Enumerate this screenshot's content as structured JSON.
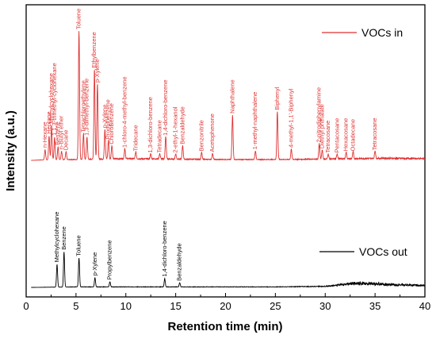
{
  "chart_data": {
    "type": "line",
    "xlabel": "Retention time (min)",
    "ylabel": "Intensity (a.u.)",
    "xlim": [
      0,
      40
    ],
    "xticks": [
      0,
      5,
      10,
      15,
      20,
      25,
      30,
      35,
      40
    ],
    "grid": false,
    "legend_placement": "right",
    "series": [
      {
        "name": "VOCs in",
        "color": "#e03030",
        "baseline": 0,
        "noise": [
          [
            0.5,
            0
          ],
          [
            1.5,
            0.5
          ],
          [
            5,
            1
          ],
          [
            10,
            2
          ],
          [
            15,
            1.5
          ],
          [
            20,
            1
          ],
          [
            25,
            1
          ],
          [
            30,
            1.5
          ],
          [
            33,
            2
          ],
          [
            36,
            2.5
          ],
          [
            40,
            2
          ]
        ],
        "peaks": [
          {
            "x": 1.9,
            "h": 12,
            "label": "n-Hexane"
          },
          {
            "x": 2.3,
            "h": 28,
            "label": "Heptane"
          },
          {
            "x": 2.55,
            "h": 40,
            "label": "Methylcyclohexane"
          },
          {
            "x": 2.85,
            "h": 26,
            "label": "1,1,3-trimethyl-cyclohexane"
          },
          {
            "x": 3.2,
            "h": 15,
            "label": "Benzene"
          },
          {
            "x": 3.55,
            "h": 10,
            "label": "n-Butyl ether"
          },
          {
            "x": 4.0,
            "h": 9,
            "label": "Decane"
          },
          {
            "x": 5.3,
            "h": 150,
            "label": "Toluene"
          },
          {
            "x": 5.75,
            "h": 30,
            "label": "Tetrachloroethylene"
          },
          {
            "x": 6.1,
            "h": 26,
            "label": "1,3-dimethyl-benzene"
          },
          {
            "x": 6.85,
            "h": 105,
            "label": "Ethylbenzene"
          },
          {
            "x": 7.15,
            "h": 88,
            "label": "p-Xylene"
          },
          {
            "x": 7.9,
            "h": 35,
            "label": "p-Xylene"
          },
          {
            "x": 8.25,
            "h": 22,
            "label": "Propylbenzene"
          },
          {
            "x": 8.6,
            "h": 16,
            "label": "ChloroBenzene"
          },
          {
            "x": 9.9,
            "h": 12,
            "label": "1-chloro-4-methyl-benzene"
          },
          {
            "x": 11.0,
            "h": 8,
            "label": "Tridecane"
          },
          {
            "x": 12.5,
            "h": 6,
            "label": "1,3-dichloro-benzene"
          },
          {
            "x": 13.4,
            "h": 6,
            "label": "Tetradecane"
          },
          {
            "x": 14.0,
            "h": 26,
            "label": "1,4-dichloro-benzene"
          },
          {
            "x": 15.0,
            "h": 6,
            "label": "2-ethyl-1-hexanol"
          },
          {
            "x": 15.7,
            "h": 16,
            "label": "Benzaldehyde"
          },
          {
            "x": 17.6,
            "h": 8,
            "label": "Benzonitrile"
          },
          {
            "x": 18.7,
            "h": 7,
            "label": "Acetophenone"
          },
          {
            "x": 20.7,
            "h": 52,
            "label": "Naphthalene"
          },
          {
            "x": 23.0,
            "h": 10,
            "label": "1-methyl-naphthalene"
          },
          {
            "x": 25.2,
            "h": 56,
            "label": "Biphenyl"
          },
          {
            "x": 26.6,
            "h": 12,
            "label": "4-methyl-1,1'-Biphenyl"
          },
          {
            "x": 29.4,
            "h": 18,
            "label": "2-nitrodiphenylamine"
          },
          {
            "x": 29.7,
            "h": 11,
            "label": "Diethyl phthalate"
          },
          {
            "x": 30.3,
            "h": 6,
            "label": "Tetracosane"
          },
          {
            "x": 31.2,
            "h": 6,
            "label": "Pentacosane"
          },
          {
            "x": 32.1,
            "h": 8,
            "label": "Hexacosane"
          },
          {
            "x": 32.8,
            "h": 8,
            "label": "Octadecane"
          },
          {
            "x": 35.0,
            "h": 9,
            "label": "Tetracosane"
          }
        ]
      },
      {
        "name": "VOCs out",
        "color": "#000000",
        "baseline": 0,
        "noise": [
          [
            0.5,
            0
          ],
          [
            5,
            0.5
          ],
          [
            10,
            0.5
          ],
          [
            15,
            0.5
          ],
          [
            20,
            0.5
          ],
          [
            25,
            0.5
          ],
          [
            30,
            1
          ],
          [
            32,
            3
          ],
          [
            33,
            4
          ],
          [
            35,
            3.5
          ],
          [
            37,
            2.5
          ],
          [
            40,
            2
          ]
        ],
        "peaks": [
          {
            "x": 3.1,
            "h": 22,
            "label": "Methylcyclohexane"
          },
          {
            "x": 3.8,
            "h": 34,
            "label": "Benzene"
          },
          {
            "x": 5.3,
            "h": 28,
            "label": "Toluene"
          },
          {
            "x": 6.9,
            "h": 9,
            "label": "p-Xylene"
          },
          {
            "x": 8.4,
            "h": 5,
            "label": "Propylbenzene"
          },
          {
            "x": 13.9,
            "h": 8,
            "label": "1,4-dichloro-benzene"
          },
          {
            "x": 15.4,
            "h": 4,
            "label": "Benzaldehyde"
          }
        ]
      }
    ]
  }
}
